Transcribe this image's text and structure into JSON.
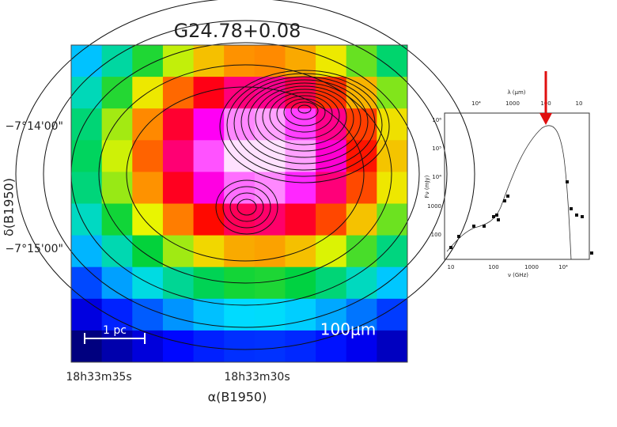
{
  "map": {
    "title": "G24.78+0.08",
    "y_ticks": [
      "−7°14'00\"",
      "−7°15'00\""
    ],
    "y_label": "δ(B1950)",
    "x_ticks": [
      "18h33m35s",
      "18h33m30s"
    ],
    "x_label": "α(B1950)",
    "scale_bar": "1 pc",
    "band": "100μm"
  },
  "sed": {
    "top_label": "λ (μm)",
    "top_ticks": [
      "10⁴",
      "1000",
      "100",
      "10"
    ],
    "left_ticks": [
      "10⁶",
      "10⁵",
      "10⁴",
      "1000",
      "100"
    ],
    "y_label": "Fν (mJy)",
    "bottom_ticks": [
      "10",
      "100",
      "1000",
      "10⁴"
    ],
    "x_label": "ν (GHz)"
  }
}
